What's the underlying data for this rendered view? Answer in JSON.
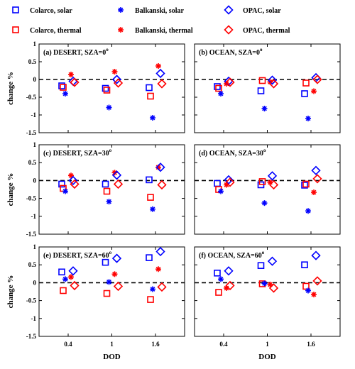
{
  "colors": {
    "solar": "#0000ff",
    "thermal": "#ff0000",
    "axis": "#000000",
    "zero_line": "#000000"
  },
  "legend": {
    "items": [
      {
        "label": "Colarco, solar",
        "model": "Colarco",
        "band": "solar",
        "marker": "square"
      },
      {
        "label": "Balkanski, solar",
        "model": "Balkanski",
        "band": "solar",
        "marker": "asterisk"
      },
      {
        "label": "OPAC, solar",
        "model": "OPAC",
        "band": "solar",
        "marker": "diamond"
      },
      {
        "label": "Colarco, thermal",
        "model": "Colarco",
        "band": "thermal",
        "marker": "square"
      },
      {
        "label": "Balkanski, thermal",
        "model": "Balkanski",
        "band": "thermal",
        "marker": "asterisk"
      },
      {
        "label": "OPAC, thermal",
        "model": "OPAC",
        "band": "thermal",
        "marker": "diamond"
      }
    ]
  },
  "chart_data": [
    {
      "type": "scatter",
      "title": "(a) DESERT, SZA=0",
      "title_sup": "o",
      "xlabel": "",
      "ylabel": "change %",
      "x_categories": [
        "0.4",
        "1",
        "1.6"
      ],
      "ylim": [
        -1.5,
        1
      ],
      "yticks": [
        "-1.5",
        "-1",
        "-0.5",
        "0",
        "0.5",
        "1"
      ],
      "show_xticklabels": false,
      "show_yticklabels": true,
      "series": [
        {
          "name": "Colarco, solar",
          "marker": "square",
          "band": "solar",
          "values": [
            -0.18,
            -0.25,
            -0.23
          ]
        },
        {
          "name": "Colarco, thermal",
          "marker": "square",
          "band": "thermal",
          "values": [
            -0.22,
            -0.3,
            -0.47
          ]
        },
        {
          "name": "Balkanski, solar",
          "marker": "asterisk",
          "band": "solar",
          "values": [
            -0.4,
            -0.79,
            -1.08
          ]
        },
        {
          "name": "Balkanski, thermal",
          "marker": "asterisk",
          "band": "thermal",
          "values": [
            0.14,
            0.22,
            0.38
          ]
        },
        {
          "name": "OPAC, solar",
          "marker": "diamond",
          "band": "solar",
          "values": [
            -0.05,
            0.0,
            0.17
          ]
        },
        {
          "name": "OPAC, thermal",
          "marker": "diamond",
          "band": "thermal",
          "values": [
            -0.08,
            -0.1,
            -0.12
          ]
        }
      ]
    },
    {
      "type": "scatter",
      "title": "(b) OCEAN, SZA=0",
      "title_sup": "o",
      "xlabel": "",
      "ylabel": "",
      "x_categories": [
        "0.4",
        "1",
        "1.6"
      ],
      "ylim": [
        -1.5,
        1
      ],
      "yticks": [
        "-1.5",
        "-1",
        "-0.5",
        "0",
        "0.5",
        "1"
      ],
      "show_xticklabels": false,
      "show_yticklabels": false,
      "series": [
        {
          "name": "Colarco, solar",
          "marker": "square",
          "band": "solar",
          "values": [
            -0.2,
            -0.32,
            -0.4
          ]
        },
        {
          "name": "Colarco, thermal",
          "marker": "square",
          "band": "thermal",
          "values": [
            -0.25,
            -0.03,
            -0.1
          ]
        },
        {
          "name": "Balkanski, solar",
          "marker": "asterisk",
          "band": "solar",
          "values": [
            -0.4,
            -0.82,
            -1.1
          ]
        },
        {
          "name": "Balkanski, thermal",
          "marker": "asterisk",
          "band": "thermal",
          "values": [
            -0.12,
            -0.07,
            -0.33
          ]
        },
        {
          "name": "OPAC, solar",
          "marker": "diamond",
          "band": "solar",
          "values": [
            -0.05,
            -0.02,
            0.05
          ]
        },
        {
          "name": "OPAC, thermal",
          "marker": "diamond",
          "band": "thermal",
          "values": [
            -0.08,
            -0.12,
            0.0
          ]
        }
      ]
    },
    {
      "type": "scatter",
      "title": "(c) DESERT, SZA=30",
      "title_sup": "o",
      "xlabel": "",
      "ylabel": "change %",
      "x_categories": [
        "0.4",
        "1",
        "1.6"
      ],
      "ylim": [
        -1.5,
        1
      ],
      "yticks": [
        "-1.5",
        "-1",
        "-0.5",
        "0",
        "0.5",
        "1"
      ],
      "show_xticklabels": false,
      "show_yticklabels": true,
      "series": [
        {
          "name": "Colarco, solar",
          "marker": "square",
          "band": "solar",
          "values": [
            -0.1,
            -0.1,
            0.02
          ]
        },
        {
          "name": "Colarco, thermal",
          "marker": "square",
          "band": "thermal",
          "values": [
            -0.22,
            -0.3,
            -0.47
          ]
        },
        {
          "name": "Balkanski, solar",
          "marker": "asterisk",
          "band": "solar",
          "values": [
            -0.3,
            -0.59,
            -0.8
          ]
        },
        {
          "name": "Balkanski, thermal",
          "marker": "asterisk",
          "band": "thermal",
          "values": [
            0.14,
            0.22,
            0.37
          ]
        },
        {
          "name": "OPAC, solar",
          "marker": "diamond",
          "band": "solar",
          "values": [
            0.0,
            0.15,
            0.37
          ]
        },
        {
          "name": "OPAC, thermal",
          "marker": "diamond",
          "band": "thermal",
          "values": [
            -0.1,
            -0.1,
            -0.12
          ]
        }
      ]
    },
    {
      "type": "scatter",
      "title": "(d) OCEAN, SZA=30",
      "title_sup": "o",
      "xlabel": "",
      "ylabel": "",
      "x_categories": [
        "0.4",
        "1",
        "1.6"
      ],
      "ylim": [
        -1.5,
        1
      ],
      "yticks": [
        "-1.5",
        "-1",
        "-0.5",
        "0",
        "0.5",
        "1"
      ],
      "show_xticklabels": false,
      "show_yticklabels": false,
      "series": [
        {
          "name": "Colarco, solar",
          "marker": "square",
          "band": "solar",
          "values": [
            -0.08,
            -0.12,
            -0.13
          ]
        },
        {
          "name": "Colarco, thermal",
          "marker": "square",
          "band": "thermal",
          "values": [
            -0.25,
            -0.03,
            -0.1
          ]
        },
        {
          "name": "Balkanski, solar",
          "marker": "asterisk",
          "band": "solar",
          "values": [
            -0.3,
            -0.63,
            -0.85
          ]
        },
        {
          "name": "Balkanski, thermal",
          "marker": "asterisk",
          "band": "thermal",
          "values": [
            -0.12,
            -0.05,
            -0.33
          ]
        },
        {
          "name": "OPAC, solar",
          "marker": "diamond",
          "band": "solar",
          "values": [
            0.02,
            0.13,
            0.28
          ]
        },
        {
          "name": "OPAC, thermal",
          "marker": "diamond",
          "band": "thermal",
          "values": [
            -0.05,
            -0.12,
            0.05
          ]
        }
      ]
    },
    {
      "type": "scatter",
      "title": "(e) DESERT, SZA=60",
      "title_sup": "o",
      "xlabel": "DOD",
      "ylabel": "change %",
      "x_categories": [
        "0.4",
        "1",
        "1.6"
      ],
      "ylim": [
        -1.5,
        1
      ],
      "yticks": [
        "-1.5",
        "-1",
        "-0.5",
        "0",
        "0.5",
        "1"
      ],
      "show_xticklabels": true,
      "show_yticklabels": true,
      "series": [
        {
          "name": "Colarco, solar",
          "marker": "square",
          "band": "solar",
          "values": [
            0.3,
            0.57,
            0.7
          ]
        },
        {
          "name": "Colarco, thermal",
          "marker": "square",
          "band": "thermal",
          "values": [
            -0.22,
            -0.3,
            -0.47
          ]
        },
        {
          "name": "Balkanski, solar",
          "marker": "asterisk",
          "band": "solar",
          "values": [
            0.1,
            0.02,
            -0.18
          ]
        },
        {
          "name": "Balkanski, thermal",
          "marker": "asterisk",
          "band": "thermal",
          "values": [
            0.16,
            0.24,
            0.38
          ]
        },
        {
          "name": "OPAC, solar",
          "marker": "diamond",
          "band": "solar",
          "values": [
            0.33,
            0.68,
            0.87
          ]
        },
        {
          "name": "OPAC, thermal",
          "marker": "diamond",
          "band": "thermal",
          "values": [
            -0.08,
            -0.1,
            -0.12
          ]
        }
      ]
    },
    {
      "type": "scatter",
      "title": "(f) OCEAN, SZA=60",
      "title_sup": "o",
      "xlabel": "DOD",
      "ylabel": "",
      "x_categories": [
        "0.4",
        "1",
        "1.6"
      ],
      "ylim": [
        -1.5,
        1
      ],
      "yticks": [
        "-1.5",
        "-1",
        "-0.5",
        "0",
        "0.5",
        "1"
      ],
      "show_xticklabels": true,
      "show_yticklabels": false,
      "series": [
        {
          "name": "Colarco, solar",
          "marker": "square",
          "band": "solar",
          "values": [
            0.27,
            0.48,
            0.5
          ]
        },
        {
          "name": "Colarco, thermal",
          "marker": "square",
          "band": "thermal",
          "values": [
            -0.27,
            -0.03,
            -0.1
          ]
        },
        {
          "name": "Balkanski, solar",
          "marker": "asterisk",
          "band": "solar",
          "values": [
            0.1,
            -0.02,
            -0.22
          ]
        },
        {
          "name": "Balkanski, thermal",
          "marker": "asterisk",
          "band": "thermal",
          "values": [
            -0.15,
            -0.05,
            -0.33
          ]
        },
        {
          "name": "OPAC, solar",
          "marker": "diamond",
          "band": "solar",
          "values": [
            0.33,
            0.6,
            0.76
          ]
        },
        {
          "name": "OPAC, thermal",
          "marker": "diamond",
          "band": "thermal",
          "values": [
            -0.08,
            -0.15,
            0.05
          ]
        }
      ]
    }
  ]
}
